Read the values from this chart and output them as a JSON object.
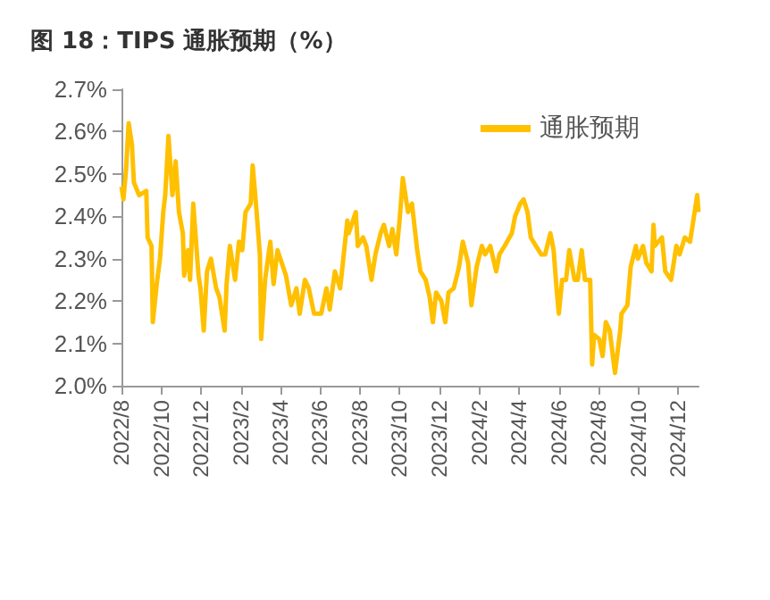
{
  "chart_data": {
    "type": "line",
    "title": "图 18：TIPS 通胀预期（%）",
    "x": [
      "2022-08-01",
      "2022-08-04",
      "2022-08-08",
      "2022-08-12",
      "2022-08-17",
      "2022-08-20",
      "2022-08-28",
      "2022-09-08",
      "2022-09-10",
      "2022-09-16",
      "2022-09-18",
      "2022-09-24",
      "2022-09-29",
      "2022-10-04",
      "2022-10-07",
      "2022-10-12",
      "2022-10-18",
      "2022-10-23",
      "2022-10-28",
      "2022-11-03",
      "2022-11-05",
      "2022-11-11",
      "2022-11-14",
      "2022-11-19",
      "2022-11-27",
      "2022-11-30",
      "2022-12-05",
      "2022-12-10",
      "2022-12-16",
      "2022-12-24",
      "2022-12-29",
      "2023-01-06",
      "2023-01-09",
      "2023-01-14",
      "2023-01-22",
      "2023-01-28",
      "2023-02-02",
      "2023-02-07",
      "2023-02-15",
      "2023-02-18",
      "2023-02-23",
      "2023-03-01",
      "2023-03-03",
      "2023-03-09",
      "2023-03-17",
      "2023-03-22",
      "2023-03-28",
      "2023-04-10",
      "2023-04-18",
      "2023-04-26",
      "2023-05-01",
      "2023-05-09",
      "2023-05-15",
      "2023-05-23",
      "2023-06-03",
      "2023-06-11",
      "2023-06-16",
      "2023-06-24",
      "2023-07-02",
      "2023-07-13",
      "2023-07-15",
      "2023-07-26",
      "2023-07-29",
      "2023-08-06",
      "2023-08-11",
      "2023-08-19",
      "2023-08-25",
      "2023-09-02",
      "2023-09-07",
      "2023-09-15",
      "2023-09-20",
      "2023-09-26",
      "2023-10-01",
      "2023-10-06",
      "2023-10-14",
      "2023-10-20",
      "2023-10-28",
      "2023-11-02",
      "2023-11-10",
      "2023-11-16",
      "2023-11-21",
      "2023-11-26",
      "2023-12-04",
      "2023-12-10",
      "2023-12-15",
      "2023-12-23",
      "2023-12-31",
      "2024-01-06",
      "2024-01-14",
      "2024-01-19",
      "2024-01-27",
      "2024-02-04",
      "2024-02-09",
      "2024-02-17",
      "2024-02-26",
      "2024-03-02",
      "2024-03-10",
      "2024-03-21",
      "2024-03-26",
      "2024-04-03",
      "2024-04-08",
      "2024-04-14",
      "2024-04-19",
      "2024-04-27",
      "2024-05-05",
      "2024-05-11",
      "2024-05-19",
      "2024-05-24",
      "2024-05-29",
      "2024-06-01",
      "2024-06-06",
      "2024-06-12",
      "2024-06-17",
      "2024-06-25",
      "2024-06-30",
      "2024-07-06",
      "2024-07-11",
      "2024-07-19",
      "2024-07-22",
      "2024-07-25",
      "2024-08-02",
      "2024-08-07",
      "2024-08-12",
      "2024-08-18",
      "2024-08-26",
      "2024-09-03",
      "2024-09-05",
      "2024-09-14",
      "2024-09-19",
      "2024-09-27",
      "2024-09-30",
      "2024-10-08",
      "2024-10-13",
      "2024-10-21",
      "2024-10-24",
      "2024-10-26",
      "2024-11-06",
      "2024-11-11",
      "2024-11-20",
      "2024-11-28",
      "2024-12-03",
      "2024-12-11",
      "2024-12-19",
      "2024-12-24",
      "2024-12-30",
      "2025-01-01"
    ],
    "series": [
      {
        "name": "通胀预期",
        "color": "#ffc000",
        "values": [
          2.47,
          2.44,
          2.51,
          2.62,
          2.57,
          2.48,
          2.45,
          2.46,
          2.35,
          2.33,
          2.15,
          2.24,
          2.3,
          2.41,
          2.45,
          2.59,
          2.45,
          2.53,
          2.41,
          2.36,
          2.26,
          2.32,
          2.25,
          2.43,
          2.26,
          2.23,
          2.13,
          2.27,
          2.3,
          2.23,
          2.21,
          2.13,
          2.24,
          2.33,
          2.25,
          2.34,
          2.32,
          2.41,
          2.43,
          2.52,
          2.43,
          2.31,
          2.11,
          2.25,
          2.34,
          2.24,
          2.32,
          2.26,
          2.19,
          2.23,
          2.17,
          2.25,
          2.23,
          2.17,
          2.17,
          2.23,
          2.18,
          2.27,
          2.23,
          2.39,
          2.36,
          2.41,
          2.33,
          2.35,
          2.33,
          2.25,
          2.31,
          2.36,
          2.38,
          2.33,
          2.37,
          2.31,
          2.39,
          2.49,
          2.41,
          2.43,
          2.32,
          2.27,
          2.25,
          2.21,
          2.15,
          2.22,
          2.2,
          2.15,
          2.22,
          2.23,
          2.28,
          2.34,
          2.29,
          2.19,
          2.28,
          2.33,
          2.31,
          2.33,
          2.27,
          2.31,
          2.33,
          2.36,
          2.4,
          2.43,
          2.44,
          2.41,
          2.35,
          2.33,
          2.31,
          2.31,
          2.36,
          2.32,
          2.22,
          2.17,
          2.25,
          2.25,
          2.32,
          2.25,
          2.25,
          2.32,
          2.25,
          2.25,
          2.05,
          2.12,
          2.11,
          2.07,
          2.15,
          2.13,
          2.03,
          2.13,
          2.17,
          2.19,
          2.28,
          2.33,
          2.3,
          2.33,
          2.29,
          2.27,
          2.38,
          2.33,
          2.35,
          2.27,
          2.25,
          2.33,
          2.31,
          2.35,
          2.34,
          2.39,
          2.45,
          2.41
        ]
      }
    ],
    "xlim": [
      "2022-08-01",
      "2025-01-01"
    ],
    "xticks": [
      {
        "value": "2022-08",
        "label": "2022/8"
      },
      {
        "value": "2022-10",
        "label": "2022/10"
      },
      {
        "value": "2022-12",
        "label": "2022/12"
      },
      {
        "value": "2023-02",
        "label": "2023/2"
      },
      {
        "value": "2023-04",
        "label": "2023/4"
      },
      {
        "value": "2023-06",
        "label": "2023/6"
      },
      {
        "value": "2023-08",
        "label": "2023/8"
      },
      {
        "value": "2023-10",
        "label": "2023/10"
      },
      {
        "value": "2023-12",
        "label": "2023/12"
      },
      {
        "value": "2024-02",
        "label": "2024/2"
      },
      {
        "value": "2024-04",
        "label": "2024/4"
      },
      {
        "value": "2024-06",
        "label": "2024/6"
      },
      {
        "value": "2024-08",
        "label": "2024/8"
      },
      {
        "value": "2024-10",
        "label": "2024/10"
      },
      {
        "value": "2024-12",
        "label": "2024/12"
      }
    ],
    "ylim": [
      2.0,
      2.7
    ],
    "yticks": [
      {
        "value": 2.0,
        "label": "2.0%"
      },
      {
        "value": 2.1,
        "label": "2.1%"
      },
      {
        "value": 2.2,
        "label": "2.2%"
      },
      {
        "value": 2.3,
        "label": "2.3%"
      },
      {
        "value": 2.4,
        "label": "2.4%"
      },
      {
        "value": 2.5,
        "label": "2.5%"
      },
      {
        "value": 2.6,
        "label": "2.6%"
      },
      {
        "value": 2.7,
        "label": "2.7%"
      }
    ],
    "grid": false,
    "legend": "top right",
    "marker": "none",
    "line_style": "solid"
  }
}
